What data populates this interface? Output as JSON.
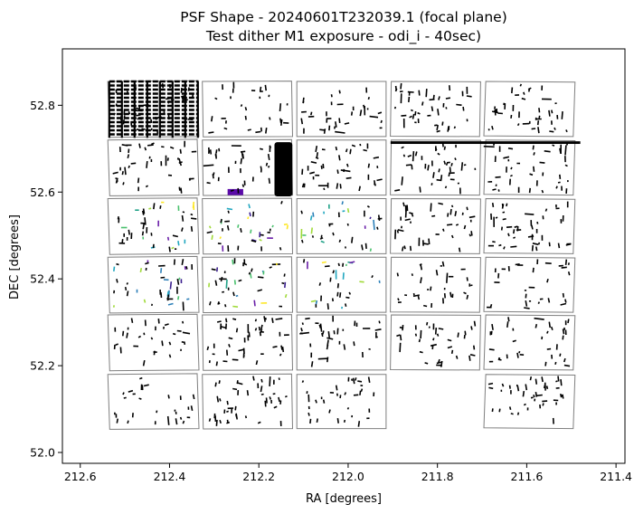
{
  "chart_data": {
    "type": "scatter",
    "title": "PSF Shape - 20240601T232039.1 (focal plane)",
    "subtitle": "Test dither M1 exposure - odi_i - 40sec)",
    "xlabel": "RA [degrees]",
    "ylabel": "DEC [degrees]",
    "xlim": [
      212.64,
      211.38
    ],
    "ylim": [
      51.975,
      52.93
    ],
    "x_inverted": true,
    "xticks": [
      212.6,
      212.4,
      212.2,
      212.0,
      211.8,
      211.6,
      211.4
    ],
    "xtick_labels": [
      "212.6",
      "212.4",
      "212.2",
      "212.0",
      "211.8",
      "211.6",
      "211.4"
    ],
    "yticks": [
      52.0,
      52.2,
      52.4,
      52.6,
      52.8
    ],
    "ytick_labels": [
      "52.0",
      "52.2",
      "52.4",
      "52.6",
      "52.8"
    ],
    "grid": false,
    "legend": "none",
    "ccd_columns_ra": [
      [
        212.535,
        212.335
      ],
      [
        212.325,
        212.125
      ],
      [
        212.115,
        211.915
      ],
      [
        211.905,
        211.705
      ],
      [
        211.695,
        211.495
      ]
    ],
    "ccd_rows_dec": [
      [
        52.728,
        52.855
      ],
      [
        52.593,
        52.72
      ],
      [
        52.458,
        52.585
      ],
      [
        52.323,
        52.45
      ],
      [
        52.19,
        52.317
      ],
      [
        52.055,
        52.18
      ]
    ],
    "ccd_missing": [
      [
        5,
        3
      ]
    ],
    "ccd_outline_color": "#7f7f7f",
    "saturated_regions": [
      {
        "ra_range": [
          212.535,
          212.335
        ],
        "dec_range": [
          52.725,
          52.855
        ],
        "color": "#000000"
      },
      {
        "ra_range": [
          212.165,
          212.125
        ],
        "dec_range": [
          52.59,
          52.715
        ],
        "color": "#000000"
      },
      {
        "ra_range": [
          212.27,
          212.235
        ],
        "dec_range": [
          52.593,
          52.607
        ],
        "color": "#5a0aa8"
      },
      {
        "ra_range": [
          211.905,
          211.48
        ],
        "dec_range": [
          52.711,
          52.717
        ],
        "color": "#000000"
      }
    ],
    "whisker_colors": [
      "#000000",
      "#1b1b1b",
      "#3b1f8f",
      "#2c7fb8",
      "#1fa187",
      "#4ac16d",
      "#a0da39",
      "#fde725",
      "#6a1fa8",
      "#22a7c0"
    ]
  }
}
